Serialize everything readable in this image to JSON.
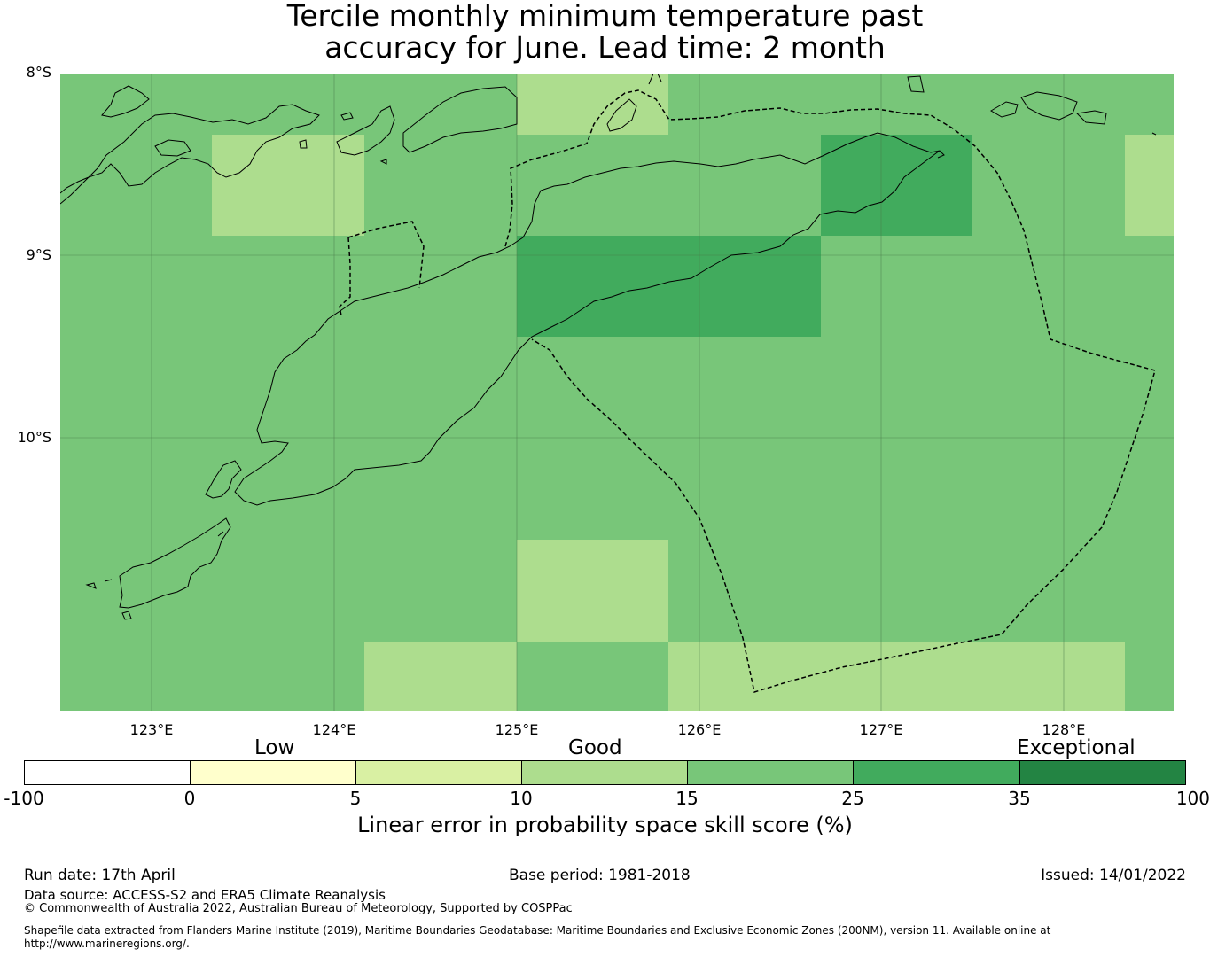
{
  "title": {
    "line1": "Tercile monthly minimum temperature past",
    "line2": "accuracy for June. Lead time: 2 month"
  },
  "map": {
    "lat_labels": [
      "8°S",
      "9°S",
      "10°S"
    ],
    "lon_labels": [
      "123°E",
      "124°E",
      "125°E",
      "126°E",
      "127°E",
      "128°E"
    ],
    "lat_values": [
      -8,
      -9,
      -10
    ],
    "lon_values": [
      123,
      124,
      125,
      126,
      127,
      128
    ],
    "lon_range": [
      122.5,
      128.6
    ],
    "lat_range": [
      -11.5,
      -8.0
    ],
    "grid_cells": [
      {
        "lon": [
          122.5,
          128.6
        ],
        "lat": [
          -11.5,
          -8.0
        ],
        "class": "15-25"
      },
      {
        "lon": [
          125.0,
          125.83
        ],
        "lat": [
          -8.33,
          -8.0
        ],
        "class": "10-15"
      },
      {
        "lon": [
          123.33,
          124.17
        ],
        "lat": [
          -8.89,
          -8.33
        ],
        "class": "10-15"
      },
      {
        "lon": [
          128.33,
          128.6
        ],
        "lat": [
          -8.89,
          -8.33
        ],
        "class": "10-15"
      },
      {
        "lon": [
          126.67,
          127.5
        ],
        "lat": [
          -8.89,
          -8.33
        ],
        "class": "25-35"
      },
      {
        "lon": [
          125.0,
          126.67
        ],
        "lat": [
          -9.44,
          -8.89
        ],
        "class": "25-35"
      },
      {
        "lon": [
          125.0,
          125.83
        ],
        "lat": [
          -11.11,
          -10.56
        ],
        "class": "10-15"
      },
      {
        "lon": [
          124.17,
          125.0
        ],
        "lat": [
          -11.5,
          -11.11
        ],
        "class": "10-15"
      },
      {
        "lon": [
          125.83,
          128.33
        ],
        "lat": [
          -11.5,
          -11.11
        ],
        "class": "10-15"
      }
    ]
  },
  "legend": {
    "categories": [
      "Low",
      "Good",
      "Exceptional"
    ],
    "ticks": [
      "-100",
      "0",
      "5",
      "10",
      "15",
      "25",
      "35",
      "100"
    ],
    "colors": [
      "#ffffff",
      "#ffffcc",
      "#d9f0a3",
      "#addd8e",
      "#78c679",
      "#41ab5d",
      "#238443"
    ],
    "label": "Linear error in probability space skill score (%)"
  },
  "info": {
    "run_date": "Run date: 17th April",
    "base_period": "Base period: 1981-2018",
    "issued": "Issued: 14/01/2022",
    "data_source": "Data source: ACCESS-S2 and ERA5 Climate Reanalysis",
    "copyright": "© Commonwealth of Australia 2022, Australian Bureau of Meteorology, Supported by COSPPac",
    "shapefile_line1": "Shapefile data extracted from Flanders Marine Institute (2019), Maritime Boundaries Geodatabase: Maritime Boundaries and Exclusive Economic Zones (200NM), version 11. Available online at",
    "shapefile_line2": "http://www.marineregions.org/."
  }
}
